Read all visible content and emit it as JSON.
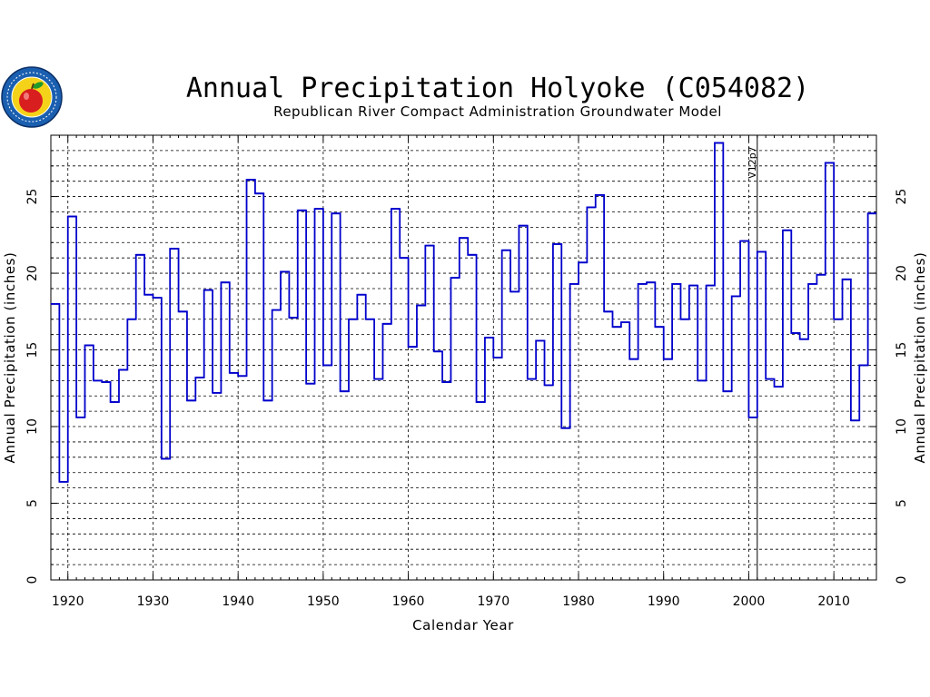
{
  "chart_data": {
    "type": "line",
    "step": true,
    "title": "Annual Precipitation Holyoke (C054082)",
    "subtitle": "Republican River Compact Administration Groundwater Model",
    "xlabel": "Calendar Year",
    "ylabel": "Annual Precipitation (inches)",
    "xlim": [
      1918,
      2015
    ],
    "ylim": [
      0,
      29
    ],
    "x_ticks": [
      1920,
      1930,
      1940,
      1950,
      1960,
      1970,
      1980,
      1990,
      2000,
      2010
    ],
    "y_ticks": [
      0,
      5,
      10,
      15,
      20,
      25
    ],
    "grid": true,
    "line_color": "#0000cc",
    "annotation": {
      "x": 2001,
      "text": "V12p7"
    },
    "series": [
      {
        "x": [
          1918,
          1919,
          1920,
          1921,
          1922,
          1923,
          1924,
          1925,
          1926,
          1927,
          1928,
          1929,
          1930,
          1931,
          1932,
          1933,
          1934,
          1935,
          1936,
          1937,
          1938,
          1939,
          1940,
          1941,
          1942,
          1943,
          1944,
          1945,
          1946,
          1947,
          1948,
          1949,
          1950,
          1951,
          1952,
          1953,
          1954,
          1955,
          1956,
          1957,
          1958,
          1959,
          1960,
          1961,
          1962,
          1963,
          1964,
          1965,
          1966,
          1967,
          1968,
          1969,
          1970,
          1971,
          1972,
          1973,
          1974,
          1975,
          1976,
          1977,
          1978,
          1979,
          1980,
          1981,
          1982,
          1983,
          1984,
          1985,
          1986,
          1987,
          1988,
          1989,
          1990,
          1991,
          1992,
          1993,
          1994,
          1995,
          1996,
          1997,
          1998,
          1999,
          2000,
          2001,
          2002,
          2003,
          2004,
          2005,
          2006,
          2007,
          2008,
          2009,
          2010,
          2011,
          2012,
          2013,
          2014
        ],
        "values": [
          18.0,
          6.4,
          23.7,
          10.6,
          15.3,
          13.0,
          12.9,
          11.6,
          13.7,
          17.0,
          21.2,
          18.6,
          18.4,
          7.9,
          21.6,
          17.5,
          11.7,
          13.2,
          18.9,
          12.2,
          19.4,
          13.5,
          13.3,
          26.1,
          25.2,
          11.7,
          17.6,
          20.1,
          17.1,
          24.1,
          12.8,
          24.2,
          14.0,
          23.9,
          12.3,
          17.0,
          18.6,
          17.0,
          13.1,
          16.7,
          24.2,
          21.0,
          15.2,
          17.9,
          21.8,
          14.9,
          12.9,
          19.7,
          22.3,
          21.2,
          11.6,
          15.8,
          14.5,
          21.5,
          18.8,
          23.1,
          13.1,
          15.6,
          12.7,
          21.9,
          9.9,
          19.3,
          20.7,
          24.3,
          25.1,
          17.5,
          16.5,
          16.8,
          14.4,
          19.3,
          19.4,
          16.5,
          14.4,
          19.3,
          17.0,
          19.2,
          13.0,
          19.2,
          28.5,
          12.3,
          18.5,
          22.1,
          10.6,
          21.4,
          13.1,
          12.6,
          22.8,
          16.1,
          15.7,
          19.3,
          19.9,
          27.2,
          17.0,
          19.6,
          10.4,
          14.0,
          23.9
        ]
      }
    ]
  }
}
